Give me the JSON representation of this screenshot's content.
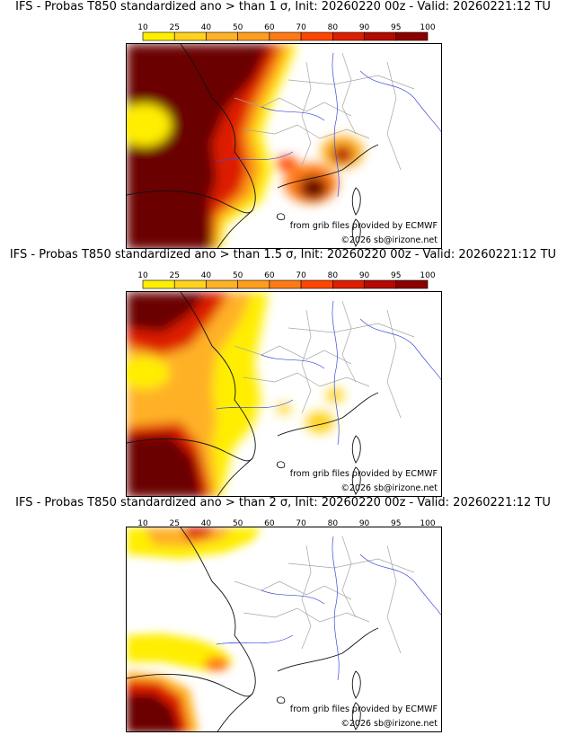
{
  "legend": {
    "ticks": [
      "10",
      "25",
      "40",
      "50",
      "60",
      "70",
      "80",
      "90",
      "95",
      "100"
    ],
    "colors": [
      "#ffee00",
      "#ffd21e",
      "#ffb128",
      "#ff9e1e",
      "#ff7a14",
      "#ff4600",
      "#dd1e00",
      "#b40a00",
      "#8c0000",
      "#6a0000"
    ]
  },
  "credits": {
    "source": "from grib files provided by ECMWF",
    "copyright": "©2026 sb@irizone.net"
  },
  "panels": [
    {
      "title": "IFS - Probas T850  standardized ano > than 1 σ, Init: 20260220 00z - Valid: 20260221:12 TU",
      "threshold_sigma": 1
    },
    {
      "title": "IFS - Probas T850  standardized ano > than 1.5 σ, Init: 20260220 00z - Valid: 20260221:12 TU",
      "threshold_sigma": 1.5
    },
    {
      "title": "IFS - Probas T850  standardized ano > than 2 σ, Init: 20260220 00z - Valid: 20260221:12 TU",
      "threshold_sigma": 2
    }
  ]
}
